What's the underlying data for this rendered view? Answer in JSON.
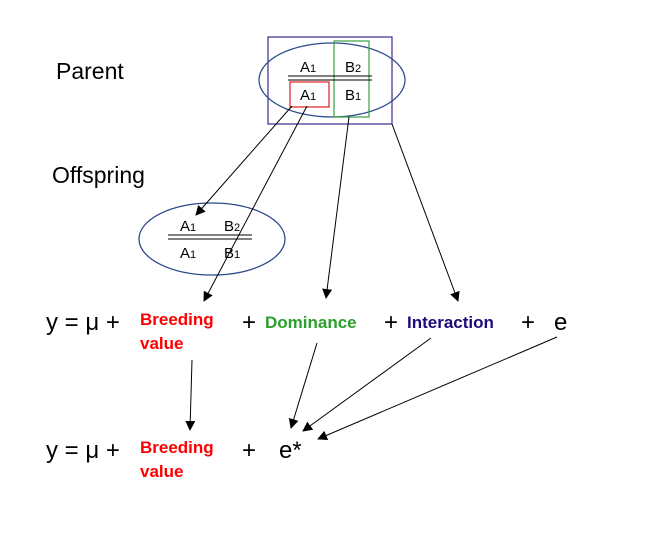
{
  "labels": {
    "parent": "Parent",
    "offspring": "Offspring"
  },
  "parent_genotype": {
    "top_a": "A1",
    "top_b": "B2",
    "bottom_a": "A1",
    "bottom_b": "B1"
  },
  "offspring_genotype": {
    "top_a": "A1",
    "top_b": "B2",
    "bottom_a": "A1",
    "bottom_b": "B1"
  },
  "equation_full": {
    "lhs": "y = μ +",
    "breeding_1": "Breeding",
    "breeding_2": "value",
    "plus1": "+",
    "dominance": "Dominance",
    "plus2": "+",
    "interaction": "Interaction",
    "plus3": "+",
    "error": "e"
  },
  "equation_reduced": {
    "lhs": "y = μ +",
    "breeding_1": "Breeding",
    "breeding_2": "value",
    "plus": "+",
    "error": "e*"
  },
  "colors": {
    "breeding": "#ff0000",
    "dominance": "#2ca02c",
    "interaction": "#1f0a7a",
    "ellipse": "#2e4a8c",
    "box_outer": "#3b2a8c",
    "box_red": "#e02020",
    "box_green": "#3aa040"
  }
}
